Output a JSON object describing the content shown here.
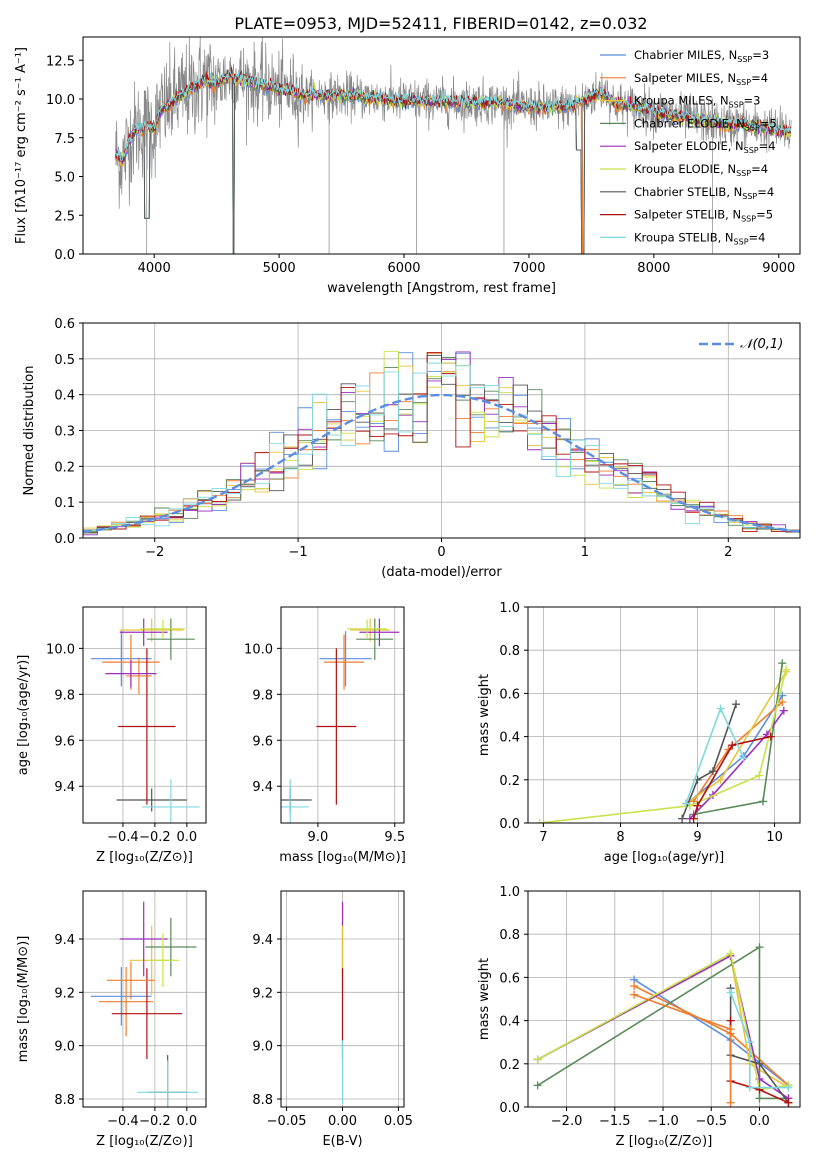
{
  "title": "PLATE=0953, MJD=52411, FIBERID=0142, z=0.032",
  "colors": {
    "Chabrier MILES": "#5b8ee0",
    "Salpeter MILES": "#f07d2e",
    "Kroupa MILES": "#e8c43a",
    "Chabrier ELODIE": "#5a8a5a",
    "Salpeter ELODIE": "#9b2fbf",
    "Kroupa ELODIE": "#c8e24a",
    "Chabrier STELIB": "#555555",
    "Salpeter STELIB": "#b01010",
    "Kroupa STELIB": "#7fd8e0",
    "data": "#888888",
    "normal": "#5b8ee0"
  },
  "chart_data": [
    {
      "type": "line",
      "name": "spectrum",
      "title": "PLATE=0953, MJD=52411, FIBERID=0142, z=0.032",
      "xlabel": "wavelength [Angstrom, rest frame]",
      "ylabel": "Flux [fλ10⁻¹⁷ erg cm⁻² s⁻¹ A⁻¹]",
      "xlim": [
        3430,
        9170
      ],
      "ylim": [
        0,
        14
      ],
      "xticks": [
        4000,
        5000,
        6000,
        7000,
        8000,
        9000
      ],
      "yticks": [
        0.0,
        2.5,
        5.0,
        7.5,
        10.0,
        12.5
      ],
      "legend_position": "top-right",
      "legend": [
        {
          "label": "Chabrier MILES, N",
          "sub": "SSP",
          "tail": "=3",
          "key": "Chabrier MILES"
        },
        {
          "label": "Salpeter MILES, N",
          "sub": "SSP",
          "tail": "=4",
          "key": "Salpeter MILES"
        },
        {
          "label": "Kroupa MILES, N",
          "sub": "SSP",
          "tail": "=3",
          "key": "Kroupa MILES"
        },
        {
          "label": "Chabrier ELODIE, N",
          "sub": "SSP",
          "tail": "=5",
          "key": "Chabrier ELODIE"
        },
        {
          "label": "Salpeter ELODIE, N",
          "sub": "SSP",
          "tail": "=4",
          "key": "Salpeter ELODIE"
        },
        {
          "label": "Kroupa ELODIE, N",
          "sub": "SSP",
          "tail": "=4",
          "key": "Kroupa ELODIE"
        },
        {
          "label": "Chabrier STELIB, N",
          "sub": "SSP",
          "tail": "=4",
          "key": "Chabrier STELIB"
        },
        {
          "label": "Salpeter STELIB, N",
          "sub": "SSP",
          "tail": "=5",
          "key": "Salpeter STELIB"
        },
        {
          "label": "Kroupa STELIB, N",
          "sub": "SSP",
          "tail": "=4",
          "key": "Kroupa STELIB"
        }
      ],
      "continuum": [
        [
          3680,
          6.5
        ],
        [
          3750,
          6.0
        ],
        [
          3800,
          7.3
        ],
        [
          3850,
          8.0
        ],
        [
          3950,
          8.2
        ],
        [
          4000,
          8.0
        ],
        [
          4050,
          9.3
        ],
        [
          4100,
          9.5
        ],
        [
          4200,
          10.2
        ],
        [
          4300,
          10.6
        ],
        [
          4400,
          11.2
        ],
        [
          4500,
          11.0
        ],
        [
          4600,
          11.5
        ],
        [
          4700,
          11.3
        ],
        [
          4800,
          11.0
        ],
        [
          4900,
          10.9
        ],
        [
          5000,
          10.6
        ],
        [
          5100,
          10.5
        ],
        [
          5200,
          10.2
        ],
        [
          5300,
          10.3
        ],
        [
          5400,
          10.2
        ],
        [
          5500,
          10.2
        ],
        [
          5600,
          10.2
        ],
        [
          5700,
          10.1
        ],
        [
          5800,
          10.1
        ],
        [
          5900,
          9.9
        ],
        [
          6000,
          9.9
        ],
        [
          6100,
          9.9
        ],
        [
          6200,
          9.8
        ],
        [
          6300,
          9.8
        ],
        [
          6400,
          9.8
        ],
        [
          6500,
          9.8
        ],
        [
          6600,
          9.8
        ],
        [
          6700,
          9.8
        ],
        [
          6800,
          9.7
        ],
        [
          6900,
          9.6
        ],
        [
          7000,
          9.5
        ],
        [
          7100,
          9.5
        ],
        [
          7200,
          9.5
        ],
        [
          7300,
          9.5
        ],
        [
          7400,
          9.7
        ],
        [
          7500,
          10.2
        ],
        [
          7600,
          10.3
        ],
        [
          7700,
          9.7
        ],
        [
          7800,
          9.6
        ],
        [
          7900,
          9.4
        ],
        [
          8000,
          9.2
        ],
        [
          8100,
          9.0
        ],
        [
          8200,
          8.9
        ],
        [
          8300,
          8.7
        ],
        [
          8400,
          8.6
        ],
        [
          8500,
          8.5
        ],
        [
          8600,
          8.3
        ],
        [
          8700,
          8.4
        ],
        [
          8800,
          8.2
        ],
        [
          8900,
          8.1
        ],
        [
          9000,
          8.0
        ],
        [
          9100,
          7.9
        ]
      ],
      "dropouts": [
        [
          3920,
          3960,
          2.3
        ],
        [
          4630,
          4640,
          0.0
        ],
        [
          7420,
          7440,
          0.0
        ],
        [
          7380,
          7420,
          6.7
        ]
      ]
    },
    {
      "type": "bar",
      "name": "residual-histogram",
      "xlabel": "(data-model)/error",
      "ylabel": "Normed distribution",
      "xlim": [
        -2.5,
        2.5
      ],
      "ylim": [
        0,
        0.6
      ],
      "xticks": [
        -2,
        -1,
        0,
        1,
        2
      ],
      "yticks": [
        0.0,
        0.1,
        0.2,
        0.3,
        0.4,
        0.5,
        0.6
      ],
      "legend_label": "𝒩(0,1)",
      "bin_width": 0.1,
      "normal_mean": 0,
      "normal_sigma": 1
    },
    {
      "type": "scatter",
      "name": "age-vs-Z",
      "xlabel": "Z [log₁₀(Z/Z⊙)]",
      "ylabel": "age  [log₁₀(age/yr)]",
      "xlim": [
        -0.65,
        0.12
      ],
      "ylim": [
        9.24,
        10.18
      ],
      "xticks": [
        -0.4,
        -0.2,
        0.0
      ],
      "yticks": [
        9.4,
        9.6,
        9.8,
        10.0
      ],
      "points": [
        {
          "key": "Chabrier MILES",
          "x": -0.41,
          "y": 9.955,
          "xe": 0.19,
          "ye": 0.12
        },
        {
          "key": "Salpeter MILES",
          "x": -0.35,
          "y": 9.94,
          "xe": 0.18,
          "ye": 0.12
        },
        {
          "key": "Kroupa MILES",
          "x": -0.22,
          "y": 10.08,
          "xe": 0.2,
          "ye": 0.05
        },
        {
          "key": "Chabrier ELODIE",
          "x": -0.1,
          "y": 10.04,
          "xe": 0.15,
          "ye": 0.09
        },
        {
          "key": "Salpeter ELODIE",
          "x": -0.27,
          "y": 10.07,
          "xe": 0.15,
          "ye": 0.06
        },
        {
          "key": "Kroupa ELODIE",
          "x": -0.15,
          "y": 10.085,
          "xe": 0.14,
          "ye": 0.04
        },
        {
          "key": "Chabrier STELIB",
          "x": -0.22,
          "y": 9.34,
          "xe": 0.22,
          "ye": 0.05
        },
        {
          "key": "Salpeter STELIB",
          "x": -0.25,
          "y": 9.66,
          "xe": 0.18,
          "ye": 0.34
        },
        {
          "key": "Kroupa STELIB",
          "x": -0.1,
          "y": 9.31,
          "xe": 0.18,
          "ye": 0.12
        },
        {
          "key": "Salpeter MILES",
          "x": -0.3,
          "y": 9.88,
          "xe": 0.08,
          "ye": 0.08
        },
        {
          "key": "Salpeter ELODIE",
          "x": -0.35,
          "y": 9.89,
          "xe": 0.16,
          "ye": 0.06
        }
      ]
    },
    {
      "type": "scatter",
      "name": "age-vs-mass",
      "xlabel": "mass [log₁₀(M/M⊙)]",
      "ylabel": "",
      "xlim": [
        8.76,
        9.56
      ],
      "ylim": [
        9.24,
        10.18
      ],
      "xticks": [
        9.0,
        9.5
      ],
      "yticks": [
        9.4,
        9.6,
        9.8,
        10.0
      ],
      "points": [
        {
          "key": "Chabrier MILES",
          "x": 9.18,
          "y": 9.955,
          "xe": 0.17,
          "ye": 0.12
        },
        {
          "key": "Salpeter MILES",
          "x": 9.17,
          "y": 9.94,
          "xe": 0.13,
          "ye": 0.12
        },
        {
          "key": "Kroupa MILES",
          "x": 9.34,
          "y": 10.08,
          "xe": 0.13,
          "ye": 0.05
        },
        {
          "key": "Chabrier ELODIE",
          "x": 9.37,
          "y": 10.04,
          "xe": 0.12,
          "ye": 0.09
        },
        {
          "key": "Salpeter ELODIE",
          "x": 9.4,
          "y": 10.07,
          "xe": 0.13,
          "ye": 0.06
        },
        {
          "key": "Kroupa ELODIE",
          "x": 9.32,
          "y": 10.085,
          "xe": 0.13,
          "ye": 0.04
        },
        {
          "key": "Chabrier STELIB",
          "x": 8.82,
          "y": 9.34,
          "xe": 0.14,
          "ye": 0.05
        },
        {
          "key": "Salpeter STELIB",
          "x": 9.12,
          "y": 9.66,
          "xe": 0.13,
          "ye": 0.34
        },
        {
          "key": "Kroupa STELIB",
          "x": 8.82,
          "y": 9.31,
          "xe": 0.12,
          "ye": 0.12
        }
      ]
    },
    {
      "type": "line",
      "name": "massweight-vs-age",
      "xlabel": "age  [log₁₀(age/yr)]",
      "ylabel": "mass weight",
      "xlim": [
        6.8,
        10.33
      ],
      "ylim": [
        0,
        1
      ],
      "xticks": [
        7,
        8,
        9,
        10
      ],
      "yticks": [
        0.0,
        0.2,
        0.4,
        0.6,
        0.8,
        1.0
      ],
      "series": [
        {
          "key": "Chabrier MILES",
          "x": [
            8.9,
            9.6,
            10.1
          ],
          "y": [
            0.1,
            0.31,
            0.59
          ]
        },
        {
          "key": "Salpeter MILES",
          "x": [
            8.95,
            9.4,
            10.1
          ],
          "y": [
            0.1,
            0.34,
            0.56
          ]
        },
        {
          "key": "Kroupa MILES",
          "x": [
            8.85,
            9.3,
            10.15
          ],
          "y": [
            0.09,
            0.2,
            0.7
          ]
        },
        {
          "key": "Chabrier ELODIE",
          "x": [
            8.95,
            9.85,
            10.1
          ],
          "y": [
            0.04,
            0.1,
            0.74
          ]
        },
        {
          "key": "Salpeter ELODIE",
          "x": [
            8.9,
            9.2,
            9.9,
            10.12
          ],
          "y": [
            0.02,
            0.13,
            0.41,
            0.52
          ]
        },
        {
          "key": "Kroupa ELODIE",
          "x": [
            6.95,
            8.9,
            9.8,
            10.15
          ],
          "y": [
            0.0,
            0.08,
            0.22,
            0.71
          ]
        },
        {
          "key": "Chabrier STELIB",
          "x": [
            8.8,
            9.0,
            9.2,
            9.5
          ],
          "y": [
            0.02,
            0.2,
            0.24,
            0.55
          ]
        },
        {
          "key": "Salpeter STELIB",
          "x": [
            8.95,
            9.0,
            9.45,
            9.95
          ],
          "y": [
            0.02,
            0.08,
            0.36,
            0.4
          ]
        },
        {
          "key": "Kroupa STELIB",
          "x": [
            8.85,
            9.3,
            9.6
          ],
          "y": [
            0.09,
            0.53,
            0.3
          ]
        }
      ]
    },
    {
      "type": "scatter",
      "name": "mass-vs-Z",
      "xlabel": "Z [log₁₀(Z/Z⊙)]",
      "ylabel": "mass [log₁₀(M/M⊙)]",
      "xlim": [
        -0.65,
        0.12
      ],
      "ylim": [
        8.77,
        9.58
      ],
      "xticks": [
        -0.4,
        -0.2,
        0.0
      ],
      "yticks": [
        8.8,
        9.0,
        9.2,
        9.4
      ],
      "points": [
        {
          "key": "Chabrier MILES",
          "x": -0.41,
          "y": 9.185,
          "xe": 0.19,
          "ye": 0.11
        },
        {
          "key": "Salpeter MILES",
          "x": -0.38,
          "y": 9.165,
          "xe": 0.17,
          "ye": 0.13
        },
        {
          "key": "Kroupa MILES",
          "x": -0.22,
          "y": 9.32,
          "xe": 0.14,
          "ye": 0.13
        },
        {
          "key": "Chabrier ELODIE",
          "x": -0.1,
          "y": 9.37,
          "xe": 0.16,
          "ye": 0.11
        },
        {
          "key": "Salpeter ELODIE",
          "x": -0.27,
          "y": 9.4,
          "xe": 0.15,
          "ye": 0.14
        },
        {
          "key": "Kroupa ELODIE",
          "x": -0.15,
          "y": 9.32,
          "xe": 0.1,
          "ye": 0.1
        },
        {
          "key": "Chabrier STELIB",
          "x": -0.12,
          "y": 8.825,
          "xe": 0.12,
          "ye": 0.14
        },
        {
          "key": "Salpeter STELIB",
          "x": -0.25,
          "y": 9.12,
          "xe": 0.22,
          "ye": 0.17
        },
        {
          "key": "Kroupa STELIB",
          "x": -0.12,
          "y": 8.825,
          "xe": 0.19,
          "ye": 0.12
        },
        {
          "key": "Salpeter MILES",
          "x": -0.35,
          "y": 9.245,
          "xe": 0.15,
          "ye": 0.07
        }
      ]
    },
    {
      "type": "scatter",
      "name": "mass-vs-EBV",
      "xlabel": "E(B-V)",
      "ylabel": "",
      "xlim": [
        -0.055,
        0.055
      ],
      "ylim": [
        8.77,
        9.58
      ],
      "xticks": [
        -0.05,
        0.0,
        0.05
      ],
      "yticks": [
        8.8,
        9.0,
        9.2,
        9.4
      ],
      "points": [
        {
          "key": "Salpeter ELODIE",
          "x": 0.0,
          "y": 9.4,
          "xe": 0,
          "ye": 0.14
        },
        {
          "key": "Kroupa MILES",
          "x": 0.0,
          "y": 9.32,
          "xe": 0,
          "ye": 0.13
        },
        {
          "key": "Salpeter STELIB",
          "x": 0.0,
          "y": 9.12,
          "xe": 0,
          "ye": 0.17
        },
        {
          "key": "Kroupa STELIB",
          "x": 0.0,
          "y": 8.9,
          "xe": 0,
          "ye": 0.12
        }
      ]
    },
    {
      "type": "line",
      "name": "massweight-vs-Z",
      "xlabel": "Z [log₁₀(Z/Z⊙)]",
      "ylabel": "mass weight",
      "xlim": [
        -2.4,
        0.42
      ],
      "ylim": [
        0,
        1
      ],
      "xticks": [
        -2.0,
        -1.5,
        -1.0,
        -0.5,
        0.0
      ],
      "yticks": [
        0.0,
        0.2,
        0.4,
        0.6,
        0.8,
        1.0
      ],
      "series": [
        {
          "key": "Chabrier MILES",
          "x": [
            -1.3,
            -0.3,
            0.3
          ],
          "y": [
            0.59,
            0.31,
            0.1
          ]
        },
        {
          "key": "Salpeter MILES",
          "x": [
            -1.3,
            -0.3,
            0.3
          ],
          "y": [
            0.56,
            0.34,
            0.1
          ]
        },
        {
          "key": "Kroupa MILES",
          "x": [
            -2.3,
            -0.3,
            -0.1,
            0.3
          ],
          "y": [
            0.22,
            0.7,
            0.2,
            0.09
          ]
        },
        {
          "key": "Chabrier ELODIE",
          "x": [
            -2.3,
            0.0,
            0.0,
            0.3
          ],
          "y": [
            0.1,
            0.74,
            0.04,
            0.04
          ]
        },
        {
          "key": "Salpeter ELODIE",
          "x": [
            -2.3,
            -0.3,
            0.0,
            0.3
          ],
          "y": [
            0.22,
            0.7,
            0.13,
            0.04
          ]
        },
        {
          "key": "Kroupa ELODIE",
          "x": [
            -2.3,
            -0.3,
            0.0,
            0.3
          ],
          "y": [
            0.22,
            0.71,
            0.08,
            0.1
          ]
        },
        {
          "key": "Chabrier STELIB",
          "x": [
            -0.3,
            -0.3,
            0.0,
            0.3
          ],
          "y": [
            0.55,
            0.24,
            0.2,
            0.02
          ]
        },
        {
          "key": "Salpeter STELIB",
          "x": [
            -0.3,
            -0.3,
            0.0,
            0.3
          ],
          "y": [
            0.4,
            0.12,
            0.08,
            0.02
          ]
        },
        {
          "key": "Kroupa STELIB",
          "x": [
            -0.3,
            -0.1,
            -0.1,
            0.3
          ],
          "y": [
            0.53,
            0.3,
            0.09,
            0.09
          ]
        },
        {
          "key": "Salpeter MILES",
          "x": [
            -1.3,
            -0.3,
            -0.3
          ],
          "y": [
            0.52,
            0.36,
            0.02
          ]
        }
      ]
    }
  ]
}
